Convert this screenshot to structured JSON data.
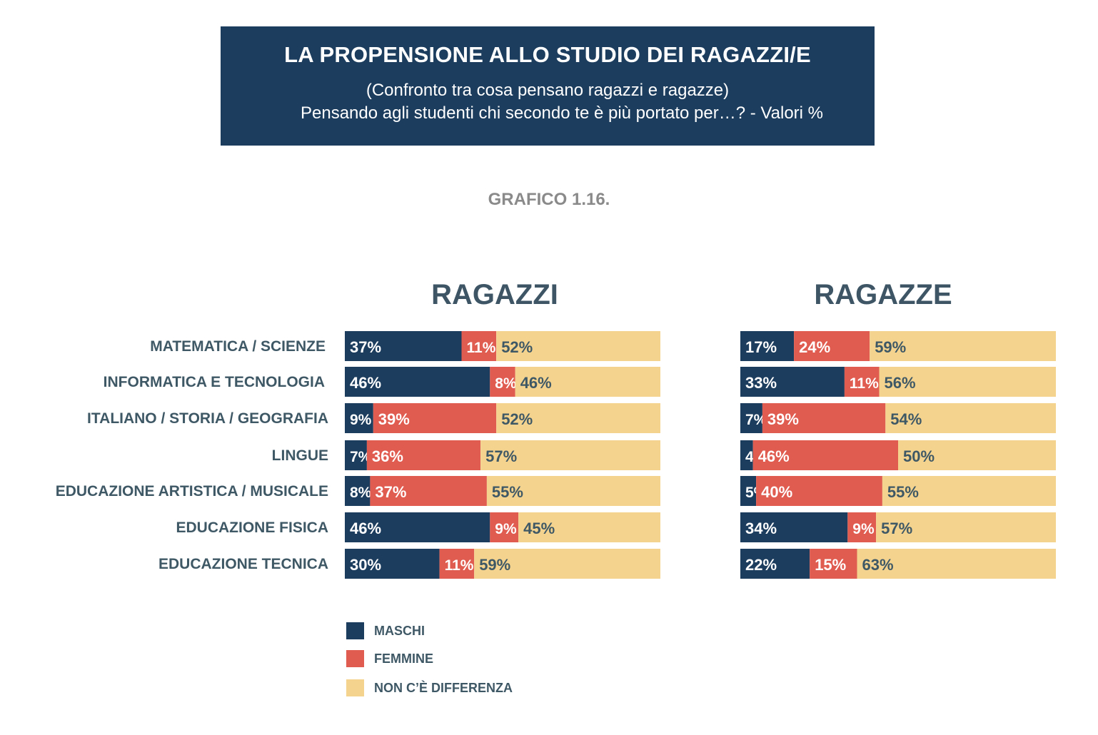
{
  "header": {
    "title": "LA PROPENSIONE ALLO STUDIO DEI RAGAZZI/E",
    "subtitle_line1": "(Confronto tra cosa pensano ragazzi e ragazze)",
    "subtitle_line2": "Pensando agli studenti chi secondo te è più portato per…? - Valori %"
  },
  "caption": "GRAFICO 1.16.",
  "colors": {
    "maschi": "#1c3d5e",
    "femmine": "#e05c50",
    "non_differenza": "#f4d38e",
    "label_dark": "#3f5866",
    "value_on_light": "#3f5866",
    "value_on_dark": "#ffffff"
  },
  "legend": {
    "maschi": "MASCHI",
    "femmine": "FEMMINE",
    "non_differenza": "NON C’È DIFFERENZA"
  },
  "chart_data": [
    {
      "type": "bar",
      "stacked": true,
      "orientation": "horizontal",
      "title": "RAGAZZI",
      "categories": [
        "MATEMATICA / SCIENZE",
        "INFORMATICA E TECNOLOGIA",
        "ITALIANO / STORIA / GEOGRAFIA",
        "LINGUE",
        "EDUCAZIONE ARTISTICA / MUSICALE",
        "EDUCAZIONE FISICA",
        "EDUCAZIONE TECNICA"
      ],
      "series": [
        {
          "name": "MASCHI",
          "values": [
            37,
            46,
            9,
            7,
            8,
            46,
            30
          ]
        },
        {
          "name": "FEMMINE",
          "values": [
            11,
            8,
            39,
            36,
            37,
            9,
            11
          ]
        },
        {
          "name": "NON C’È DIFFERENZA",
          "values": [
            52,
            46,
            52,
            57,
            55,
            45,
            59
          ]
        }
      ],
      "unit": "%",
      "xlim": [
        0,
        100
      ]
    },
    {
      "type": "bar",
      "stacked": true,
      "orientation": "horizontal",
      "title": "RAGAZZE",
      "categories": [
        "MATEMATICA / SCIENZE",
        "INFORMATICA E TECNOLOGIA",
        "ITALIANO / STORIA / GEOGRAFIA",
        "LINGUE",
        "EDUCAZIONE ARTISTICA / MUSICALE",
        "EDUCAZIONE FISICA",
        "EDUCAZIONE TECNICA"
      ],
      "series": [
        {
          "name": "MASCHI",
          "values": [
            17,
            33,
            7,
            4,
            5,
            34,
            22
          ]
        },
        {
          "name": "FEMMINE",
          "values": [
            24,
            11,
            39,
            46,
            40,
            9,
            15
          ]
        },
        {
          "name": "NON C’È DIFFERENZA",
          "values": [
            59,
            56,
            54,
            50,
            55,
            57,
            63
          ]
        }
      ],
      "unit": "%",
      "xlim": [
        0,
        100
      ]
    }
  ]
}
